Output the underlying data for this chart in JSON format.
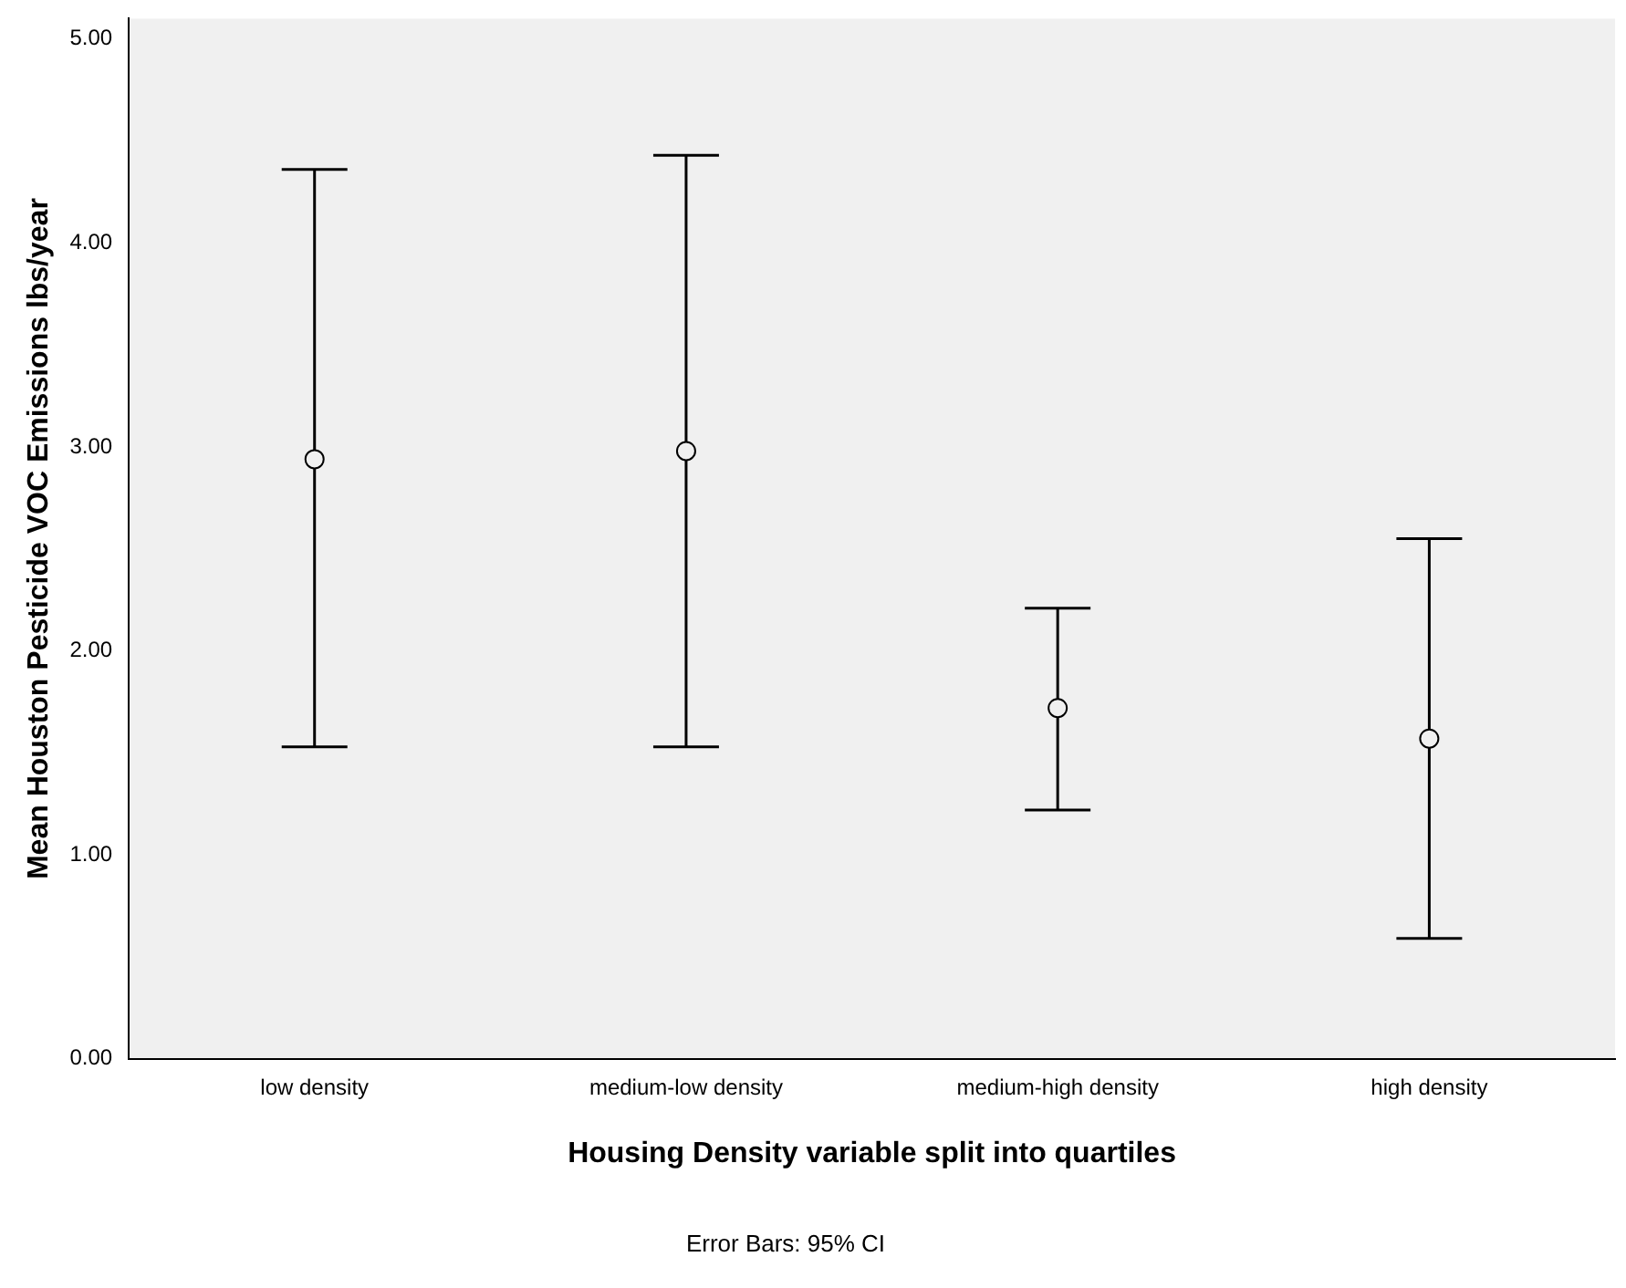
{
  "chart_data": {
    "type": "scatter",
    "xlabel": "Housing Density variable split into quartiles",
    "ylabel": "Mean Houston Pesticide VOC Emissions lbs/year",
    "categories": [
      "low density",
      "medium-low density",
      "medium-high density",
      "high density"
    ],
    "values": [
      2.94,
      2.98,
      1.72,
      1.57
    ],
    "errors": [
      [
        1.53,
        4.36
      ],
      [
        1.53,
        4.43
      ],
      [
        1.22,
        2.21
      ],
      [
        0.59,
        2.55
      ]
    ],
    "color": "#000000",
    "marker": "circle",
    "ylim": [
      0,
      5.1
    ],
    "yticks": [
      {
        "value": 0,
        "label": "0.00"
      },
      {
        "value": 1,
        "label": "1.00"
      },
      {
        "value": 2,
        "label": "2.00"
      },
      {
        "value": 3,
        "label": "3.00"
      },
      {
        "value": 4,
        "label": "4.00"
      },
      {
        "value": 5,
        "label": "5.00"
      }
    ],
    "grid": false,
    "annotations": [
      "Error Bars: 95% CI"
    ]
  }
}
